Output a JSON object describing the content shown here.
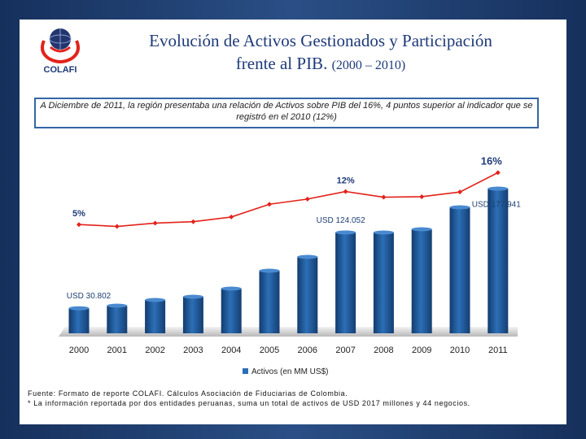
{
  "header": {
    "logo_text": "COLAFI",
    "title_line1": "Evolución de Activos Gestionados y Participación",
    "title_line2": "frente al PIB.",
    "title_years": "(2000 – 2010)"
  },
  "callout": {
    "text": "A Diciembre de 2011, la región presentaba una relación de Activos sobre PIB del 16%, 4 puntos superior al indicador que se registró en el 2010 (12%)"
  },
  "chart_data": {
    "type": "bar",
    "categories": [
      "2000",
      "2001",
      "2002",
      "2003",
      "2004",
      "2005",
      "2006",
      "2007",
      "2008",
      "2009",
      "2010",
      "2011"
    ],
    "series": [
      {
        "name": "Activos (en MM US$)",
        "kind": "bar",
        "color": "#2c6fb7",
        "values": [
          30.802,
          34,
          41,
          45,
          55,
          77,
          94,
          124.052,
          124,
          128,
          155,
          177.941
        ]
      },
      {
        "kind": "line",
        "color": "#e2231a",
        "values": [
          5,
          4.6,
          5.3,
          5.6,
          6.6,
          9.3,
          10.4,
          12,
          10.8,
          10.9,
          11.9,
          16
        ]
      }
    ],
    "data_labels": [
      {
        "series": 0,
        "index": 0,
        "text": "USD 30.802"
      },
      {
        "series": 0,
        "index": 7,
        "text": "USD 124.052"
      },
      {
        "series": 0,
        "index": 11,
        "text": "USD 177.941"
      },
      {
        "series": 1,
        "index": 0,
        "text": "5%"
      },
      {
        "series": 1,
        "index": 7,
        "text": "12%"
      },
      {
        "series": 1,
        "index": 11,
        "text": "16%"
      }
    ],
    "legend": "Activos (en MM US$)",
    "legend_position": "bottom",
    "grid": false
  },
  "footer": {
    "source": "Fuente: Formato de reporte COLAFI. Cálculos Asociación de Fiduciarias de Colombia.",
    "note": "* La información reportada por dos entidades peruanas, suma un total de activos de USD 2017 millones y 44 negocios."
  }
}
